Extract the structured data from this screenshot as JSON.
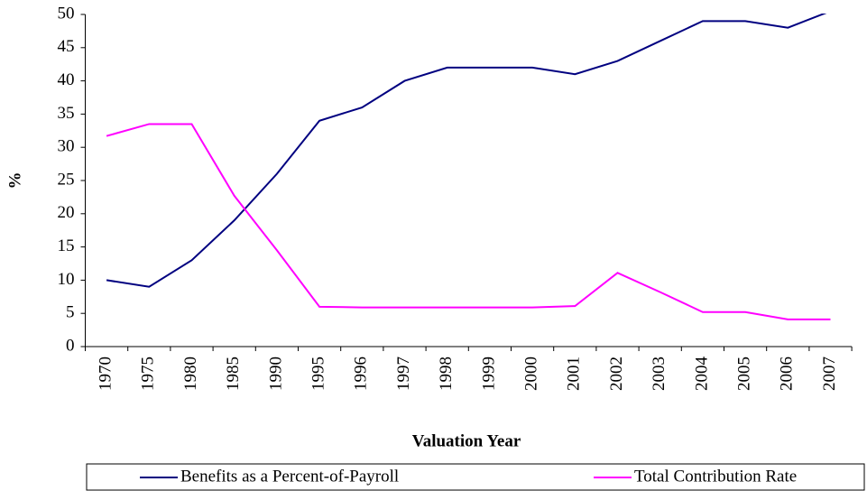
{
  "chart_data": {
    "type": "line",
    "x_label": "Valuation Year",
    "y_label": "%",
    "categories": [
      "1970",
      "1975",
      "1980",
      "1985",
      "1990",
      "1995",
      "1996",
      "1997",
      "1998",
      "1999",
      "2000",
      "2001",
      "2002",
      "2003",
      "2004",
      "2005",
      "2006",
      "2007"
    ],
    "series": [
      {
        "name": "Benefits as a Percent-of-Payroll",
        "color": "#000080",
        "values": [
          10,
          9,
          13,
          19,
          26,
          34,
          36,
          40,
          42,
          42,
          42,
          41,
          43,
          46,
          49,
          49,
          48,
          50.5
        ]
      },
      {
        "name": "Total Contribution Rate",
        "color": "#ff00ff",
        "values": [
          31.7,
          33.5,
          33.5,
          22.7,
          14.5,
          6,
          5.9,
          5.9,
          5.9,
          5.9,
          5.9,
          6.1,
          11.1,
          8.2,
          5.2,
          5.2,
          4.1,
          4.1
        ]
      }
    ],
    "ylim": [
      0,
      50
    ],
    "yticks": [
      0,
      5,
      10,
      15,
      20,
      25,
      30,
      35,
      40,
      45,
      50
    ],
    "grid": false,
    "legend": "bottom"
  }
}
